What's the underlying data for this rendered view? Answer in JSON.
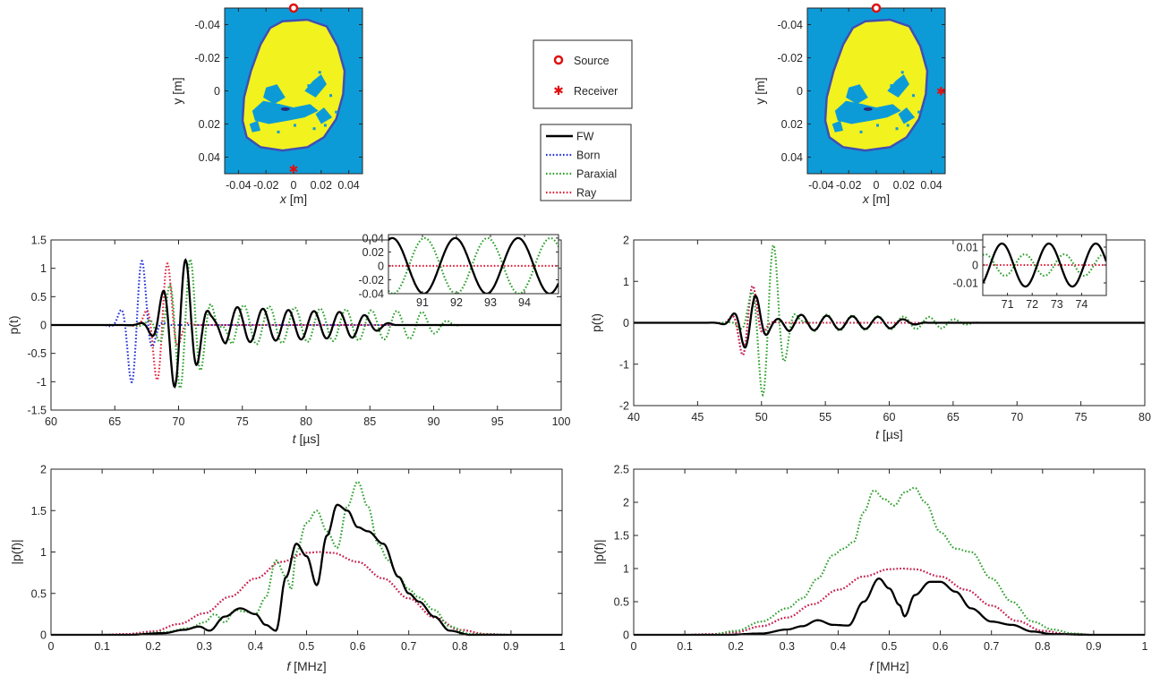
{
  "legend_markers": {
    "source": "Source",
    "receiver": "Receiver"
  },
  "legend_lines": [
    {
      "name": "FW",
      "color": "#000000",
      "dash": "solid"
    },
    {
      "name": "Born",
      "color": "#1f2fd6",
      "dash": "dotted"
    },
    {
      "name": "Paraxial",
      "color": "#2ca02c",
      "dash": "dotted"
    },
    {
      "name": "Ray",
      "color": "#e0203a",
      "dash": "dotted"
    }
  ],
  "colors": {
    "water": "#0d9bd8",
    "tissue": "#f2f21f",
    "boundary": "#3f4fb3",
    "core": "#2b2b7a",
    "marker": "#e01010"
  },
  "chart_data": [
    {
      "type": "heatmap",
      "id": "map-left",
      "xlabel": "x [m]",
      "ylabel": "y [m]",
      "xlim": [
        -0.05,
        0.05
      ],
      "ylim": [
        -0.05,
        0.05
      ],
      "y_reversed": true,
      "xticks": [
        -0.04,
        -0.02,
        0,
        0.02,
        0.04
      ],
      "xtick_labels": [
        "-0.04",
        "-0.02",
        "0",
        "0.02",
        "0.04"
      ],
      "yticks": [
        -0.04,
        -0.02,
        0,
        0.02,
        0.04
      ],
      "ytick_labels": [
        "-0.04",
        "-0.02",
        "0",
        "0.02",
        "0.04"
      ],
      "source": {
        "x": 0,
        "y": -0.05
      },
      "receiver": {
        "x": 0,
        "y": 0.047
      }
    },
    {
      "type": "heatmap",
      "id": "map-right",
      "xlabel": "x [m]",
      "ylabel": "y [m]",
      "xlim": [
        -0.05,
        0.05
      ],
      "ylim": [
        -0.05,
        0.05
      ],
      "y_reversed": true,
      "xticks": [
        -0.04,
        -0.02,
        0,
        0.02,
        0.04
      ],
      "xtick_labels": [
        "-0.04",
        "-0.02",
        "0",
        "0.02",
        "0.04"
      ],
      "yticks": [
        -0.04,
        -0.02,
        0,
        0.02,
        0.04
      ],
      "ytick_labels": [
        "-0.04",
        "-0.02",
        "0",
        "0.02",
        "0.04"
      ],
      "source": {
        "x": 0,
        "y": -0.05
      },
      "receiver": {
        "x": 0.047,
        "y": 0
      }
    },
    {
      "type": "line",
      "id": "time-left",
      "xlabel": "t [µs]",
      "ylabel": "p(t)",
      "xlim": [
        60,
        100
      ],
      "ylim": [
        -1.5,
        1.5
      ],
      "xticks": [
        60,
        65,
        70,
        75,
        80,
        85,
        90,
        95,
        100
      ],
      "xtick_labels": [
        "60",
        "65",
        "70",
        "75",
        "80",
        "85",
        "90",
        "95",
        "100"
      ],
      "yticks": [
        -1.5,
        -1,
        -0.5,
        0,
        0.5,
        1,
        1.5
      ],
      "ytick_labels": [
        "-1.5",
        "-1",
        "-0.5",
        "0",
        "0.5",
        "1",
        "1.5"
      ],
      "series": [
        {
          "name": "FW",
          "center": 70.2,
          "width": 1.7,
          "amp": 1.2,
          "freq": 0.55,
          "tail": 0.35,
          "tail_start": 72.5,
          "tail_end": 84
        },
        {
          "name": "Born",
          "center": 66.8,
          "width": 1.1,
          "amp": 1.25,
          "freq": 0.55,
          "tail": 0.0,
          "tail_start": 0,
          "tail_end": 0
        },
        {
          "name": "Paraxial",
          "center": 70.6,
          "width": 1.8,
          "amp": 1.2,
          "freq": 0.6,
          "tail": 0.38,
          "tail_start": 73,
          "tail_end": 89
        },
        {
          "name": "Ray",
          "center": 68.8,
          "width": 1.1,
          "amp": 1.2,
          "freq": 0.55,
          "tail": 0.0,
          "tail_start": 0,
          "tail_end": 0
        }
      ]
    },
    {
      "type": "line",
      "id": "time-right",
      "xlabel": "t [µs]",
      "ylabel": "p(t)",
      "xlim": [
        40,
        80
      ],
      "ylim": [
        -2,
        2
      ],
      "xticks": [
        40,
        45,
        50,
        55,
        60,
        65,
        70,
        75,
        80
      ],
      "xtick_labels": [
        "40",
        "45",
        "50",
        "55",
        "60",
        "65",
        "70",
        "75",
        "80"
      ],
      "yticks": [
        -2,
        -1,
        0,
        1,
        2
      ],
      "ytick_labels": [
        "-2",
        "-1",
        "0",
        "1",
        "2"
      ],
      "series": [
        {
          "name": "FW",
          "center": 49.2,
          "width": 1.3,
          "amp": 0.7,
          "freq": 0.55,
          "tail": 0.22,
          "tail_start": 51,
          "tail_end": 60
        },
        {
          "name": "Born",
          "center": 49.0,
          "width": 1.0,
          "amp": 1.0,
          "freq": 0.55,
          "tail": 0.0,
          "tail_start": 0,
          "tail_end": 0
        },
        {
          "name": "Paraxial",
          "center": 50.6,
          "width": 1.4,
          "amp": 2.0,
          "freq": 0.55,
          "tail": 0.22,
          "tail_start": 53,
          "tail_end": 64
        },
        {
          "name": "Ray",
          "center": 49.0,
          "width": 1.0,
          "amp": 1.0,
          "freq": 0.55,
          "tail": 0.0,
          "tail_start": 0,
          "tail_end": 0
        }
      ]
    },
    {
      "type": "line",
      "id": "freq-left",
      "xlabel": "f [MHz]",
      "ylabel": "|p(f)|",
      "xlim": [
        0,
        1
      ],
      "ylim": [
        0,
        2
      ],
      "xticks": [
        0,
        0.1,
        0.2,
        0.3,
        0.4,
        0.5,
        0.6,
        0.7,
        0.8,
        0.9,
        1
      ],
      "xtick_labels": [
        "0",
        "0.1",
        "0.2",
        "0.3",
        "0.4",
        "0.5",
        "0.6",
        "0.7",
        "0.8",
        "0.9",
        "1"
      ],
      "yticks": [
        0,
        0.5,
        1,
        1.5,
        2
      ],
      "ytick_labels": [
        "0",
        "0.5",
        "1",
        "1.5",
        "2"
      ],
      "series": [
        {
          "name": "FW",
          "x": [
            0,
            0.15,
            0.22,
            0.26,
            0.29,
            0.31,
            0.34,
            0.37,
            0.4,
            0.42,
            0.44,
            0.46,
            0.48,
            0.5,
            0.52,
            0.54,
            0.56,
            0.58,
            0.6,
            0.62,
            0.65,
            0.68,
            0.7,
            0.72,
            0.75,
            0.78,
            0.82,
            0.9,
            1
          ],
          "y": [
            0,
            0,
            0.02,
            0.06,
            0.1,
            0.05,
            0.22,
            0.32,
            0.25,
            0.12,
            0.05,
            0.7,
            1.1,
            0.95,
            0.6,
            1.2,
            1.57,
            1.5,
            1.3,
            1.25,
            1.1,
            0.7,
            0.5,
            0.4,
            0.22,
            0.05,
            0,
            0,
            0
          ]
        },
        {
          "name": "Born",
          "x": [
            0,
            0.1,
            0.15,
            0.2,
            0.25,
            0.3,
            0.35,
            0.4,
            0.45,
            0.5,
            0.525,
            0.55,
            0.6,
            0.65,
            0.7,
            0.75,
            0.8,
            0.85,
            0.9,
            1
          ],
          "y": [
            0,
            0,
            0.01,
            0.04,
            0.13,
            0.26,
            0.46,
            0.68,
            0.88,
            0.99,
            1.0,
            0.99,
            0.88,
            0.68,
            0.44,
            0.21,
            0.06,
            0.01,
            0,
            0
          ]
        },
        {
          "name": "Paraxial",
          "x": [
            0,
            0.15,
            0.22,
            0.27,
            0.3,
            0.32,
            0.34,
            0.36,
            0.38,
            0.4,
            0.42,
            0.44,
            0.46,
            0.47,
            0.48,
            0.5,
            0.52,
            0.54,
            0.56,
            0.58,
            0.6,
            0.62,
            0.64,
            0.66,
            0.68,
            0.7,
            0.72,
            0.75,
            0.78,
            0.82,
            0.9,
            1
          ],
          "y": [
            0,
            0,
            0.03,
            0.08,
            0.15,
            0.25,
            0.15,
            0.3,
            0.28,
            0.25,
            0.45,
            0.9,
            0.7,
            0.55,
            1.0,
            1.35,
            1.5,
            1.25,
            1.05,
            1.55,
            1.85,
            1.55,
            1.1,
            0.9,
            0.7,
            0.55,
            0.45,
            0.3,
            0.1,
            0.01,
            0,
            0
          ]
        },
        {
          "name": "Ray",
          "x": [
            0,
            0.1,
            0.15,
            0.2,
            0.25,
            0.3,
            0.35,
            0.4,
            0.45,
            0.5,
            0.525,
            0.55,
            0.6,
            0.65,
            0.7,
            0.75,
            0.8,
            0.85,
            0.9,
            1
          ],
          "y": [
            0,
            0,
            0.01,
            0.04,
            0.13,
            0.26,
            0.46,
            0.68,
            0.88,
            0.99,
            1.0,
            0.99,
            0.88,
            0.68,
            0.44,
            0.21,
            0.06,
            0.01,
            0,
            0
          ]
        }
      ]
    },
    {
      "type": "line",
      "id": "freq-right",
      "xlabel": "f [MHz]",
      "ylabel": "|p(f)|",
      "xlim": [
        0,
        1
      ],
      "ylim": [
        0,
        2.5
      ],
      "xticks": [
        0,
        0.1,
        0.2,
        0.3,
        0.4,
        0.5,
        0.6,
        0.7,
        0.8,
        0.9,
        1
      ],
      "xtick_labels": [
        "0",
        "0.1",
        "0.2",
        "0.3",
        "0.4",
        "0.5",
        "0.6",
        "0.7",
        "0.8",
        "0.9",
        "1"
      ],
      "yticks": [
        0,
        0.5,
        1,
        1.5,
        2,
        2.5
      ],
      "ytick_labels": [
        "0",
        "0.5",
        "1",
        "1.5",
        "2",
        "2.5"
      ],
      "series": [
        {
          "name": "FW",
          "x": [
            0,
            0.18,
            0.25,
            0.3,
            0.33,
            0.36,
            0.39,
            0.42,
            0.45,
            0.48,
            0.5,
            0.52,
            0.53,
            0.55,
            0.58,
            0.6,
            0.63,
            0.66,
            0.7,
            0.74,
            0.78,
            0.82,
            0.9,
            1
          ],
          "y": [
            0,
            0,
            0.02,
            0.08,
            0.13,
            0.22,
            0.15,
            0.14,
            0.5,
            0.85,
            0.7,
            0.45,
            0.28,
            0.6,
            0.8,
            0.8,
            0.65,
            0.4,
            0.2,
            0.15,
            0.05,
            0.01,
            0,
            0
          ]
        },
        {
          "name": "Born",
          "x": [
            0,
            0.1,
            0.15,
            0.2,
            0.25,
            0.3,
            0.35,
            0.4,
            0.45,
            0.5,
            0.525,
            0.55,
            0.6,
            0.65,
            0.7,
            0.75,
            0.8,
            0.85,
            0.9,
            1
          ],
          "y": [
            0,
            0,
            0.01,
            0.04,
            0.13,
            0.26,
            0.46,
            0.68,
            0.88,
            0.99,
            1.0,
            0.99,
            0.88,
            0.68,
            0.44,
            0.21,
            0.06,
            0.01,
            0,
            0
          ]
        },
        {
          "name": "Paraxial",
          "x": [
            0,
            0.15,
            0.2,
            0.25,
            0.3,
            0.33,
            0.36,
            0.39,
            0.41,
            0.43,
            0.45,
            0.47,
            0.49,
            0.51,
            0.53,
            0.55,
            0.57,
            0.6,
            0.63,
            0.66,
            0.7,
            0.74,
            0.78,
            0.82,
            0.86,
            0.9,
            1
          ],
          "y": [
            0,
            0,
            0.06,
            0.2,
            0.4,
            0.55,
            0.85,
            1.2,
            1.3,
            1.4,
            1.85,
            2.18,
            2.05,
            1.95,
            2.15,
            2.22,
            2.0,
            1.55,
            1.3,
            1.25,
            0.85,
            0.5,
            0.2,
            0.08,
            0.02,
            0,
            0
          ]
        },
        {
          "name": "Ray",
          "x": [
            0,
            0.1,
            0.15,
            0.2,
            0.25,
            0.3,
            0.35,
            0.4,
            0.45,
            0.5,
            0.525,
            0.55,
            0.6,
            0.65,
            0.7,
            0.75,
            0.8,
            0.85,
            0.9,
            1
          ],
          "y": [
            0,
            0,
            0.01,
            0.04,
            0.13,
            0.26,
            0.46,
            0.68,
            0.88,
            0.99,
            1.0,
            0.99,
            0.88,
            0.68,
            0.44,
            0.21,
            0.06,
            0.01,
            0,
            0
          ]
        }
      ]
    }
  ],
  "insets": [
    {
      "id": "inset-left",
      "parent": "time-left",
      "xlim": [
        90,
        95
      ],
      "ylim": [
        -0.04,
        0.045
      ],
      "xticks": [
        91,
        92,
        93,
        94
      ],
      "xtick_labels": [
        "91",
        "92",
        "93",
        "94"
      ],
      "yticks": [
        -0.04,
        -0.02,
        0,
        0.02,
        0.04
      ],
      "ytick_labels": [
        "-0.04",
        "-0.02",
        "0",
        "0.02",
        "0.04"
      ],
      "series": [
        {
          "name": "FW",
          "amp": 0.04,
          "period": 1.85,
          "phase": 91.5
        },
        {
          "name": "Paraxial",
          "amp": 0.04,
          "period": 1.85,
          "phase": 90.6
        },
        {
          "name": "Ray",
          "amp": 0.0,
          "period": 1.0,
          "phase": 0
        }
      ]
    },
    {
      "id": "inset-right",
      "parent": "time-right",
      "xlim": [
        70,
        75
      ],
      "ylim": [
        -0.017,
        0.017
      ],
      "xticks": [
        71,
        72,
        73,
        74
      ],
      "xtick_labels": [
        "71",
        "72",
        "73",
        "74"
      ],
      "yticks": [
        -0.01,
        0,
        0.01
      ],
      "ytick_labels": [
        "-0.01",
        "0",
        "0.01"
      ],
      "series": [
        {
          "name": "FW",
          "amp": 0.012,
          "period": 1.9,
          "phase": 70.3
        },
        {
          "name": "Paraxial",
          "amp": 0.006,
          "period": 1.6,
          "phase": 72.9
        },
        {
          "name": "Ray",
          "amp": 0.0,
          "period": 1.0,
          "phase": 0
        }
      ]
    }
  ]
}
